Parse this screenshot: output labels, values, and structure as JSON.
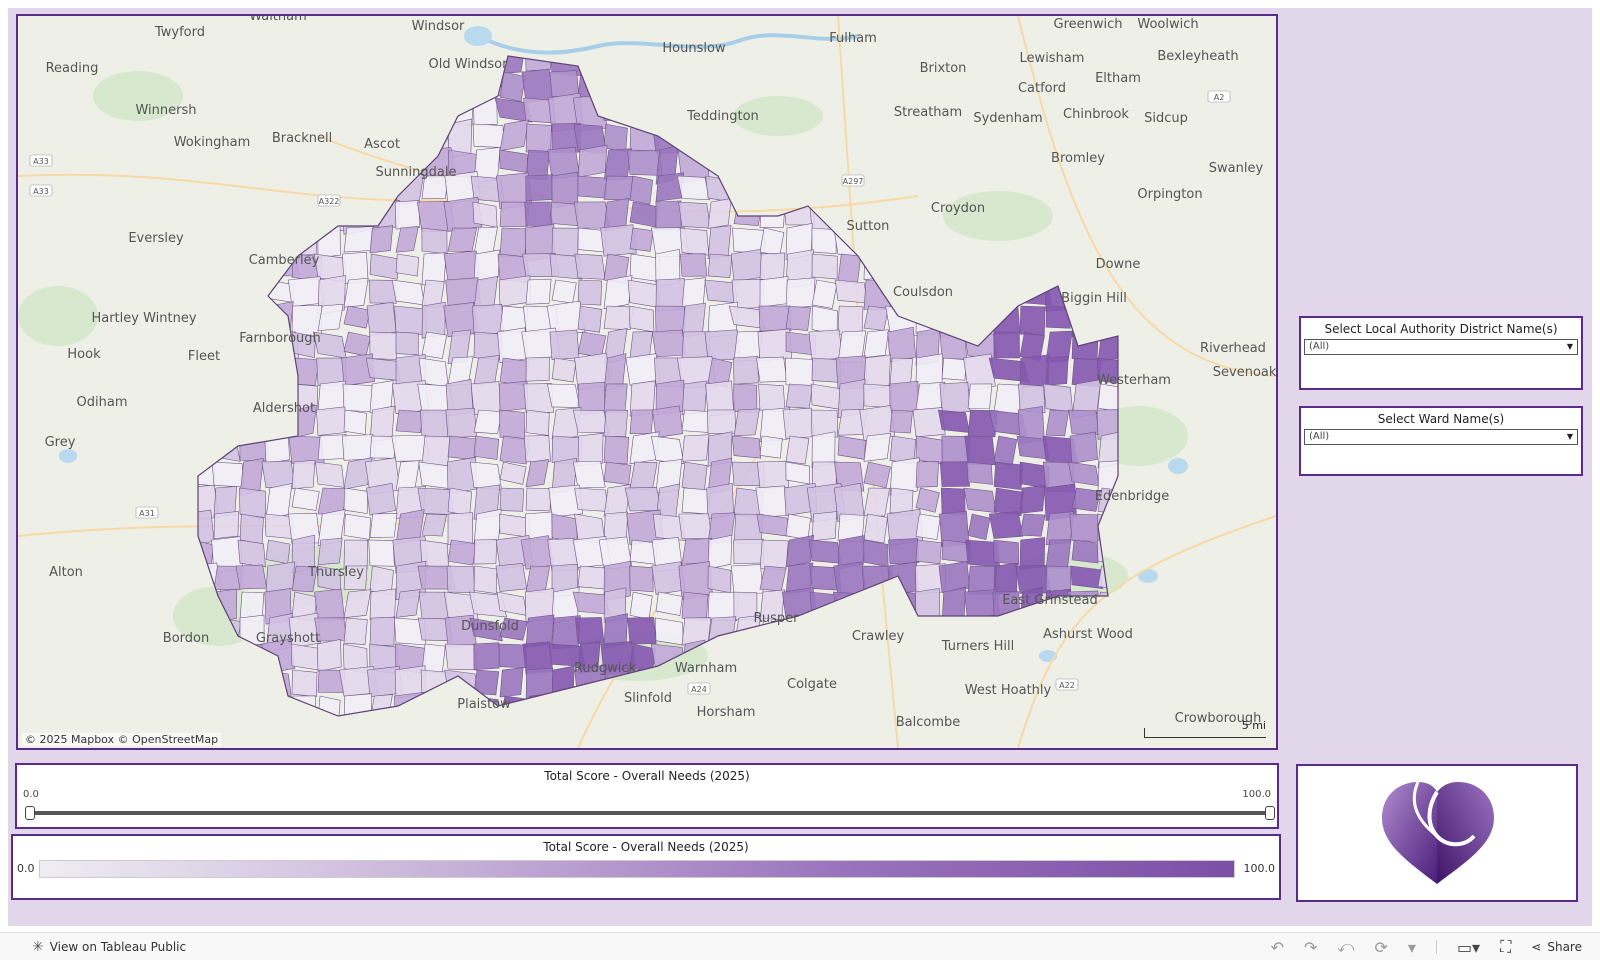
{
  "map": {
    "attribution": "© 2025 Mapbox  © OpenStreetMap",
    "scale_label": "5 mi",
    "fill_colors": [
      "#f1eef6",
      "#e3d8ec",
      "#d2c1e2",
      "#c1a9d7",
      "#ad8fcc",
      "#9a75bf",
      "#8456b0"
    ],
    "place_labels": [
      "Windsor",
      "Greenwich",
      "Woolwich",
      "Waltham",
      "Twyford",
      "Reading",
      "Fulham",
      "Hounslow",
      "Old Windsor",
      "Lewisham",
      "Bexleyheath",
      "Brixton",
      "Eltham",
      "Catford",
      "Winnersh",
      "Teddington",
      "Streatham",
      "Sydenham",
      "Chinbrook",
      "Sidcup",
      "Wokingham",
      "Bracknell",
      "Ascot",
      "Bromley",
      "Swanley",
      "Sunningdale",
      "Croydon",
      "Orpington",
      "Eversley",
      "Sutton",
      "Downe",
      "Hartley Wintney",
      "Farnborough",
      "Coulsdon",
      "Biggin Hill",
      "Hook",
      "Fleet",
      "Westerham",
      "Riverhead",
      "Sevenoaks",
      "Odiham",
      "Aldershot",
      "Grey",
      "Edenbridge",
      "Alton",
      "East Grinstead",
      "Bordon",
      "Rusper",
      "Crawley",
      "Ashurst Wood",
      "Turners Hill",
      "Rudgwick",
      "Warnham",
      "Colgate",
      "West Hoathly",
      "Plaistow",
      "Slinfold",
      "Horsham",
      "Balcombe",
      "Crowborough",
      "Camberley",
      "Thursley",
      "Dunsfold",
      "Grayshott"
    ],
    "road_labels": [
      "A33",
      "A33",
      "A322",
      "A297",
      "A2",
      "A31",
      "A24",
      "A22"
    ]
  },
  "filters": {
    "district": {
      "title": "Select Local Authority District Name(s)",
      "value": "(All)"
    },
    "ward": {
      "title": "Select Ward Name(s)",
      "value": "(All)"
    }
  },
  "slider": {
    "title": "Total Score - Overall Needs (2025)",
    "min": "0.0",
    "max": "100.0",
    "range_low": 0,
    "range_high": 100
  },
  "legend": {
    "title": "Total Score - Overall Needs (2025)",
    "min": "0.0",
    "max": "100.0"
  },
  "footer": {
    "view_link": "View on Tableau Public",
    "share_label": "Share"
  },
  "colors": {
    "accent": "#5b2b8a",
    "background": "#e2d6ea"
  }
}
